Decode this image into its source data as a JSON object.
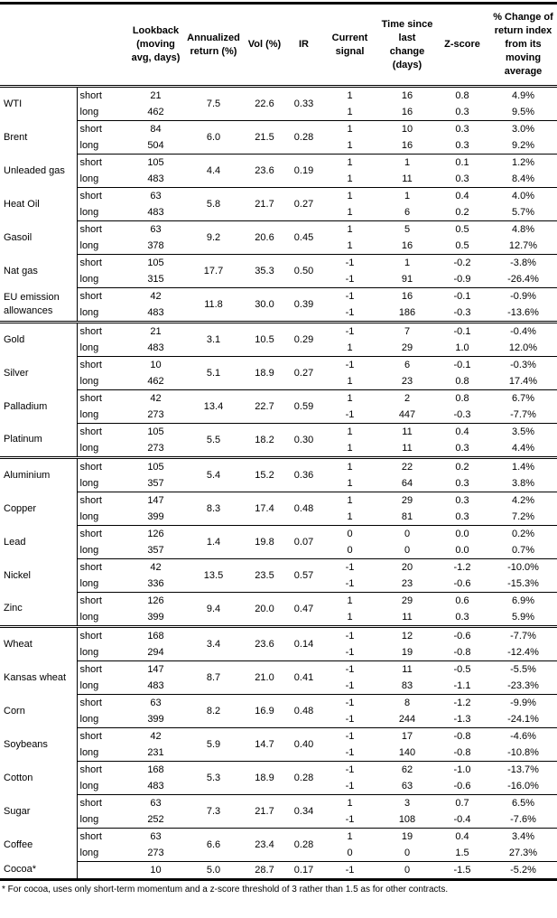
{
  "headers": [
    "",
    "",
    "Lookback (moving avg, days)",
    "Annualized return (%)",
    "Vol (%)",
    "IR",
    "Current signal",
    "Time since last change (days)",
    "Z-score",
    "% Change of return index from its moving average"
  ],
  "sectors": [
    {
      "commodities": [
        {
          "name": "WTI",
          "ann": "7.5",
          "vol": "22.6",
          "ir": "0.33",
          "rows": [
            {
              "type": "short",
              "lookback": "21",
              "signal": "1",
              "time": "16",
              "z": "0.8",
              "pct": "4.9%"
            },
            {
              "type": "long",
              "lookback": "462",
              "signal": "1",
              "time": "16",
              "z": "0.3",
              "pct": "9.5%"
            }
          ]
        },
        {
          "name": "Brent",
          "ann": "6.0",
          "vol": "21.5",
          "ir": "0.28",
          "rows": [
            {
              "type": "short",
              "lookback": "84",
              "signal": "1",
              "time": "10",
              "z": "0.3",
              "pct": "3.0%"
            },
            {
              "type": "long",
              "lookback": "504",
              "signal": "1",
              "time": "16",
              "z": "0.3",
              "pct": "9.2%"
            }
          ]
        },
        {
          "name": "Unleaded gas",
          "ann": "4.4",
          "vol": "23.6",
          "ir": "0.19",
          "rows": [
            {
              "type": "short",
              "lookback": "105",
              "signal": "1",
              "time": "1",
              "z": "0.1",
              "pct": "1.2%"
            },
            {
              "type": "long",
              "lookback": "483",
              "signal": "1",
              "time": "11",
              "z": "0.3",
              "pct": "8.4%"
            }
          ]
        },
        {
          "name": "Heat Oil",
          "ann": "5.8",
          "vol": "21.7",
          "ir": "0.27",
          "rows": [
            {
              "type": "short",
              "lookback": "63",
              "signal": "1",
              "time": "1",
              "z": "0.4",
              "pct": "4.0%"
            },
            {
              "type": "long",
              "lookback": "483",
              "signal": "1",
              "time": "6",
              "z": "0.2",
              "pct": "5.7%"
            }
          ]
        },
        {
          "name": "Gasoil",
          "ann": "9.2",
          "vol": "20.6",
          "ir": "0.45",
          "rows": [
            {
              "type": "short",
              "lookback": "63",
              "signal": "1",
              "time": "5",
              "z": "0.5",
              "pct": "4.8%"
            },
            {
              "type": "long",
              "lookback": "378",
              "signal": "1",
              "time": "16",
              "z": "0.5",
              "pct": "12.7%"
            }
          ]
        },
        {
          "name": "Nat gas",
          "ann": "17.7",
          "vol": "35.3",
          "ir": "0.50",
          "rows": [
            {
              "type": "short",
              "lookback": "105",
              "signal": "-1",
              "time": "1",
              "z": "-0.2",
              "pct": "-3.8%"
            },
            {
              "type": "long",
              "lookback": "315",
              "signal": "-1",
              "time": "91",
              "z": "-0.9",
              "pct": "-26.4%"
            }
          ]
        },
        {
          "name": "EU emission allowances",
          "ann": "11.8",
          "vol": "30.0",
          "ir": "0.39",
          "rows": [
            {
              "type": "short",
              "lookback": "42",
              "signal": "-1",
              "time": "16",
              "z": "-0.1",
              "pct": "-0.9%"
            },
            {
              "type": "long",
              "lookback": "483",
              "signal": "-1",
              "time": "186",
              "z": "-0.3",
              "pct": "-13.6%"
            }
          ]
        }
      ]
    },
    {
      "commodities": [
        {
          "name": "Gold",
          "ann": "3.1",
          "vol": "10.5",
          "ir": "0.29",
          "rows": [
            {
              "type": "short",
              "lookback": "21",
              "signal": "-1",
              "time": "7",
              "z": "-0.1",
              "pct": "-0.4%"
            },
            {
              "type": "long",
              "lookback": "483",
              "signal": "1",
              "time": "29",
              "z": "1.0",
              "pct": "12.0%"
            }
          ]
        },
        {
          "name": "Silver",
          "ann": "5.1",
          "vol": "18.9",
          "ir": "0.27",
          "rows": [
            {
              "type": "short",
              "lookback": "10",
              "signal": "-1",
              "time": "6",
              "z": "-0.1",
              "pct": "-0.3%"
            },
            {
              "type": "long",
              "lookback": "462",
              "signal": "1",
              "time": "23",
              "z": "0.8",
              "pct": "17.4%"
            }
          ]
        },
        {
          "name": "Palladium",
          "ann": "13.4",
          "vol": "22.7",
          "ir": "0.59",
          "rows": [
            {
              "type": "short",
              "lookback": "42",
              "signal": "1",
              "time": "2",
              "z": "0.8",
              "pct": "6.7%"
            },
            {
              "type": "long",
              "lookback": "273",
              "signal": "-1",
              "time": "447",
              "z": "-0.3",
              "pct": "-7.7%"
            }
          ]
        },
        {
          "name": "Platinum",
          "ann": "5.5",
          "vol": "18.2",
          "ir": "0.30",
          "rows": [
            {
              "type": "short",
              "lookback": "105",
              "signal": "1",
              "time": "11",
              "z": "0.4",
              "pct": "3.5%"
            },
            {
              "type": "long",
              "lookback": "273",
              "signal": "1",
              "time": "11",
              "z": "0.3",
              "pct": "4.4%"
            }
          ]
        }
      ]
    },
    {
      "commodities": [
        {
          "name": "Aluminium",
          "ann": "5.4",
          "vol": "15.2",
          "ir": "0.36",
          "rows": [
            {
              "type": "short",
              "lookback": "105",
              "signal": "1",
              "time": "22",
              "z": "0.2",
              "pct": "1.4%"
            },
            {
              "type": "long",
              "lookback": "357",
              "signal": "1",
              "time": "64",
              "z": "0.3",
              "pct": "3.8%"
            }
          ]
        },
        {
          "name": "Copper",
          "ann": "8.3",
          "vol": "17.4",
          "ir": "0.48",
          "rows": [
            {
              "type": "short",
              "lookback": "147",
              "signal": "1",
              "time": "29",
              "z": "0.3",
              "pct": "4.2%"
            },
            {
              "type": "long",
              "lookback": "399",
              "signal": "1",
              "time": "81",
              "z": "0.3",
              "pct": "7.2%"
            }
          ]
        },
        {
          "name": "Lead",
          "ann": "1.4",
          "vol": "19.8",
          "ir": "0.07",
          "rows": [
            {
              "type": "short",
              "lookback": "126",
              "signal": "0",
              "time": "0",
              "z": "0.0",
              "pct": "0.2%"
            },
            {
              "type": "long",
              "lookback": "357",
              "signal": "0",
              "time": "0",
              "z": "0.0",
              "pct": "0.7%"
            }
          ]
        },
        {
          "name": "Nickel",
          "ann": "13.5",
          "vol": "23.5",
          "ir": "0.57",
          "rows": [
            {
              "type": "short",
              "lookback": "42",
              "signal": "-1",
              "time": "20",
              "z": "-1.2",
              "pct": "-10.0%"
            },
            {
              "type": "long",
              "lookback": "336",
              "signal": "-1",
              "time": "23",
              "z": "-0.6",
              "pct": "-15.3%"
            }
          ]
        },
        {
          "name": "Zinc",
          "ann": "9.4",
          "vol": "20.0",
          "ir": "0.47",
          "rows": [
            {
              "type": "short",
              "lookback": "126",
              "signal": "1",
              "time": "29",
              "z": "0.6",
              "pct": "6.9%"
            },
            {
              "type": "long",
              "lookback": "399",
              "signal": "1",
              "time": "11",
              "z": "0.3",
              "pct": "5.9%"
            }
          ]
        }
      ]
    },
    {
      "commodities": [
        {
          "name": "Wheat",
          "ann": "3.4",
          "vol": "23.6",
          "ir": "0.14",
          "rows": [
            {
              "type": "short",
              "lookback": "168",
              "signal": "-1",
              "time": "12",
              "z": "-0.6",
              "pct": "-7.7%"
            },
            {
              "type": "long",
              "lookback": "294",
              "signal": "-1",
              "time": "19",
              "z": "-0.8",
              "pct": "-12.4%"
            }
          ]
        },
        {
          "name": "Kansas wheat",
          "ann": "8.7",
          "vol": "21.0",
          "ir": "0.41",
          "rows": [
            {
              "type": "short",
              "lookback": "147",
              "signal": "-1",
              "time": "11",
              "z": "-0.5",
              "pct": "-5.5%"
            },
            {
              "type": "long",
              "lookback": "483",
              "signal": "-1",
              "time": "83",
              "z": "-1.1",
              "pct": "-23.3%"
            }
          ]
        },
        {
          "name": "Corn",
          "ann": "8.2",
          "vol": "16.9",
          "ir": "0.48",
          "rows": [
            {
              "type": "short",
              "lookback": "63",
              "signal": "-1",
              "time": "8",
              "z": "-1.2",
              "pct": "-9.9%"
            },
            {
              "type": "long",
              "lookback": "399",
              "signal": "-1",
              "time": "244",
              "z": "-1.3",
              "pct": "-24.1%"
            }
          ]
        },
        {
          "name": "Soybeans",
          "ann": "5.9",
          "vol": "14.7",
          "ir": "0.40",
          "rows": [
            {
              "type": "short",
              "lookback": "42",
              "signal": "-1",
              "time": "17",
              "z": "-0.8",
              "pct": "-4.6%"
            },
            {
              "type": "long",
              "lookback": "231",
              "signal": "-1",
              "time": "140",
              "z": "-0.8",
              "pct": "-10.8%"
            }
          ]
        },
        {
          "name": "Cotton",
          "ann": "5.3",
          "vol": "18.9",
          "ir": "0.28",
          "rows": [
            {
              "type": "short",
              "lookback": "168",
              "signal": "-1",
              "time": "62",
              "z": "-1.0",
              "pct": "-13.7%"
            },
            {
              "type": "long",
              "lookback": "483",
              "signal": "-1",
              "time": "63",
              "z": "-0.6",
              "pct": "-16.0%"
            }
          ]
        },
        {
          "name": "Sugar",
          "ann": "7.3",
          "vol": "21.7",
          "ir": "0.34",
          "rows": [
            {
              "type": "short",
              "lookback": "63",
              "signal": "1",
              "time": "3",
              "z": "0.7",
              "pct": "6.5%"
            },
            {
              "type": "long",
              "lookback": "252",
              "signal": "-1",
              "time": "108",
              "z": "-0.4",
              "pct": "-7.6%"
            }
          ]
        },
        {
          "name": "Coffee",
          "ann": "6.6",
          "vol": "23.4",
          "ir": "0.28",
          "rows": [
            {
              "type": "short",
              "lookback": "63",
              "signal": "1",
              "time": "19",
              "z": "0.4",
              "pct": "3.4%"
            },
            {
              "type": "long",
              "lookback": "273",
              "signal": "0",
              "time": "0",
              "z": "1.5",
              "pct": "27.3%"
            }
          ]
        },
        {
          "name": "Cocoa*",
          "ann": "5.0",
          "vol": "28.7",
          "ir": "0.17",
          "rows": [
            {
              "type": "",
              "lookback": "10",
              "signal": "-1",
              "time": "0",
              "z": "-1.5",
              "pct": "-5.2%"
            }
          ]
        }
      ]
    }
  ],
  "footnote": "* For cocoa, uses only short-term momentum and a z-score threshold of 3 rather than 1.5 as for other contracts."
}
